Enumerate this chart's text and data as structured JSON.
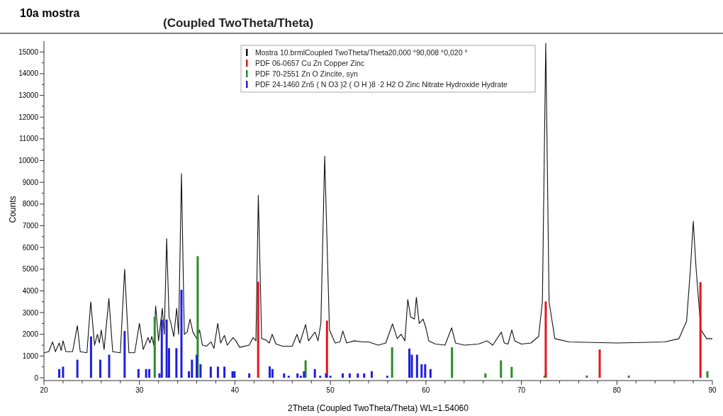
{
  "chart_data": {
    "type": "line",
    "subtitle": "10a mostra",
    "title": "(Coupled TwoTheta/Theta)",
    "xlabel": "2Theta (Coupled TwoTheta/Theta) WL=1.54060",
    "ylabel": "Counts",
    "xlim": [
      20,
      90
    ],
    "ylim": [
      0,
      15500
    ],
    "xticks": [
      20,
      {
        "value": 22,
        "label": null
      },
      {
        "value": 24,
        "label": null
      },
      {
        "value": 26,
        "label": null
      },
      {
        "value": 28,
        "label": null
      },
      30,
      {
        "value": 32,
        "label": null
      },
      {
        "value": 34,
        "label": null
      },
      {
        "value": 36,
        "label": null
      },
      {
        "value": 38,
        "label": null
      },
      40,
      {
        "value": 42,
        "label": null
      },
      {
        "value": 44,
        "label": null
      },
      {
        "value": 46,
        "label": null
      },
      {
        "value": 48,
        "label": null
      },
      50,
      {
        "value": 52,
        "label": null
      },
      {
        "value": 54,
        "label": null
      },
      {
        "value": 56,
        "label": null
      },
      {
        "value": 58,
        "label": null
      },
      60,
      {
        "value": 62,
        "label": null
      },
      {
        "value": 64,
        "label": null
      },
      {
        "value": 66,
        "label": null
      },
      {
        "value": 68,
        "label": null
      },
      70,
      {
        "value": 72,
        "label": null
      },
      {
        "value": 74,
        "label": null
      },
      {
        "value": 76,
        "label": null
      },
      {
        "value": 78,
        "label": null
      },
      80,
      {
        "value": 82,
        "label": null
      },
      {
        "value": 84,
        "label": null
      },
      {
        "value": 86,
        "label": null
      },
      {
        "value": 88,
        "label": null
      },
      90
    ],
    "yticks": [
      0,
      {
        "value": 500,
        "label": null
      },
      1000,
      {
        "value": 1500,
        "label": null
      },
      2000,
      {
        "value": 2500,
        "label": null
      },
      3000,
      {
        "value": 3500,
        "label": null
      },
      4000,
      {
        "value": 4500,
        "label": null
      },
      5000,
      {
        "value": 5500,
        "label": null
      },
      6000,
      {
        "value": 6500,
        "label": null
      },
      7000,
      {
        "value": 7500,
        "label": null
      },
      8000,
      {
        "value": 8500,
        "label": null
      },
      9000,
      {
        "value": 9500,
        "label": null
      },
      10000,
      {
        "value": 10500,
        "label": null
      },
      11000,
      {
        "value": 11500,
        "label": null
      },
      12000,
      {
        "value": 12500,
        "label": null
      },
      13000,
      {
        "value": 13500,
        "label": null
      },
      14000,
      {
        "value": 14500,
        "label": null
      },
      15000
    ],
    "grid": false,
    "legend": "top",
    "marker": "none",
    "series": [
      {
        "name": "Mostra 10.brmlCoupled TwoTheta/Theta20,000 °90,008 °0,020 °",
        "color": "#111111",
        "x": [
          20,
          20.5,
          20.9,
          21.2,
          21.6,
          21.8,
          22.0,
          22.3,
          23.0,
          23.5,
          23.8,
          24.5,
          24.9,
          25.3,
          25.6,
          25.8,
          26.0,
          26.3,
          26.8,
          27.2,
          28.0,
          28.45,
          28.9,
          29.5,
          30.0,
          30.4,
          30.9,
          31.1,
          31.3,
          31.5,
          31.7,
          32.0,
          32.4,
          32.6,
          32.85,
          33.1,
          33.3,
          33.6,
          33.9,
          34.1,
          34.4,
          34.7,
          35.0,
          35.3,
          35.6,
          36.0,
          36.3,
          36.6,
          37.0,
          37.5,
          37.8,
          38.2,
          38.5,
          38.9,
          39.2,
          39.8,
          40.1,
          40.5,
          41.5,
          41.9,
          42.2,
          42.45,
          42.8,
          43.2,
          43.6,
          43.9,
          44.3,
          45.0,
          46.0,
          46.5,
          46.8,
          47.4,
          47.7,
          48.4,
          48.7,
          49.0,
          49.4,
          49.9,
          50.5,
          51.0,
          51.3,
          51.7,
          52.5,
          53.4,
          54.0,
          55.0,
          55.8,
          56.5,
          57.0,
          57.4,
          57.8,
          58.1,
          58.4,
          58.8,
          59.0,
          59.3,
          59.7,
          60.0,
          60.3,
          61.0,
          62.0,
          62.7,
          63.1,
          64.0,
          65.5,
          66.4,
          67.0,
          67.9,
          68.2,
          68.6,
          69.0,
          69.3,
          70.0,
          71.0,
          71.8,
          72.2,
          72.55,
          72.9,
          73.5,
          75.0,
          80.0,
          85.0,
          86.5,
          87.3,
          87.7,
          88.0,
          88.3,
          88.8,
          89.4,
          90.0
        ],
        "values": [
          1150,
          1200,
          1650,
          1200,
          1600,
          1250,
          1700,
          1200,
          1200,
          2400,
          1200,
          1150,
          3500,
          1500,
          2000,
          1600,
          2200,
          1300,
          3650,
          1200,
          1150,
          5000,
          1150,
          1150,
          2500,
          1300,
          1850,
          1600,
          1900,
          1500,
          3300,
          1700,
          3200,
          2000,
          6400,
          2800,
          2500,
          1900,
          3200,
          2000,
          9400,
          2000,
          2100,
          2700,
          2100,
          1800,
          2200,
          1500,
          1450,
          1650,
          1350,
          2500,
          1600,
          1950,
          1500,
          1850,
          1700,
          1400,
          1500,
          1850,
          1700,
          8400,
          1800,
          1750,
          1600,
          2000,
          1550,
          1450,
          1450,
          2000,
          1600,
          2450,
          1700,
          2100,
          1700,
          2500,
          10200,
          2200,
          1600,
          1650,
          2150,
          1600,
          1700,
          1650,
          1650,
          1500,
          1600,
          2480,
          1800,
          2000,
          1700,
          3600,
          2800,
          2700,
          3700,
          2500,
          2700,
          2300,
          1700,
          1550,
          1500,
          2300,
          1600,
          1500,
          1550,
          1700,
          1500,
          2100,
          1600,
          1550,
          2200,
          1700,
          1550,
          1600,
          1900,
          3500,
          15400,
          3500,
          1800,
          1650,
          1600,
          1650,
          1800,
          2600,
          5000,
          7200,
          5000,
          2200,
          1800,
          1800
        ]
      },
      {
        "type": "bar",
        "name": "PDF 06-0657 Cu Zn Copper Zinc",
        "color": "#e8141b",
        "x": [
          42.43,
          49.64,
          72.55,
          78.2,
          88.75
        ],
        "values": [
          4420,
          2630,
          3510,
          1300,
          4400
        ]
      },
      {
        "type": "bar",
        "name": "PDF 70-2551 Zn O Zincite, syn",
        "color": "#2a8c2a",
        "x": [
          31.6,
          36.1,
          47.4,
          56.46,
          62.73,
          66.23,
          67.86,
          68.98,
          72.43,
          76.85,
          81.25,
          89.48
        ],
        "values": [
          2800,
          5600,
          800,
          1400,
          1400,
          200,
          800,
          500,
          100,
          100,
          100,
          300
        ]
      },
      {
        "type": "bar",
        "name": "PDF 24-1460 Zn5 ( N O3 )2 ( O H )8 ·2 H2 O Zinc Nitrate Hydroxide Hydrate",
        "color": "#1f1fe0",
        "x": [
          21.6,
          22.0,
          23.5,
          24.93,
          25.9,
          26.83,
          28.45,
          29.9,
          30.7,
          31.03,
          32.1,
          32.34,
          32.85,
          33.1,
          33.87,
          34.4,
          35.18,
          35.5,
          36.0,
          36.4,
          37.47,
          38.22,
          38.9,
          39.75,
          39.95,
          41.5,
          43.64,
          43.93,
          45.15,
          45.63,
          46.55,
          46.9,
          47.23,
          48.37,
          48.93,
          49.54,
          50.0,
          51.29,
          52.02,
          52.87,
          53.53,
          54.33,
          55.96,
          58.27,
          58.53,
          59.07,
          59.55,
          59.92,
          60.48
        ],
        "values": [
          400,
          510,
          830,
          1900,
          830,
          1060,
          2150,
          400,
          400,
          400,
          200,
          2680,
          2680,
          1360,
          1360,
          4050,
          300,
          830,
          1060,
          620,
          510,
          510,
          510,
          300,
          300,
          200,
          520,
          400,
          200,
          90,
          200,
          90,
          300,
          400,
          90,
          200,
          90,
          200,
          200,
          200,
          200,
          300,
          90,
          1340,
          1060,
          1060,
          620,
          620,
          400
        ]
      }
    ]
  }
}
